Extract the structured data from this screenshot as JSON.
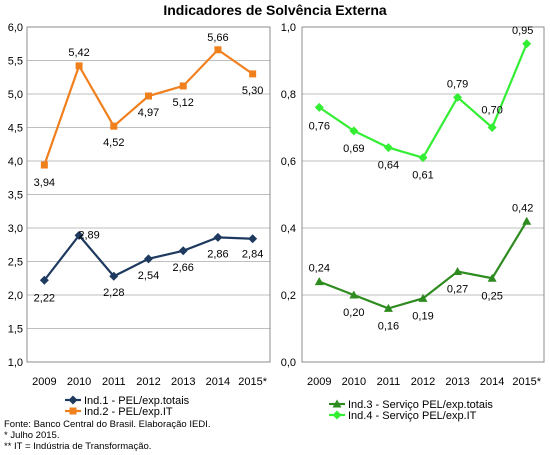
{
  "title": "Indicadores de Solvência Externa",
  "chart_data": [
    {
      "type": "line",
      "categories": [
        "2009",
        "2010",
        "2011",
        "2012",
        "2013",
        "2014",
        "2015*"
      ],
      "ylim": [
        1.0,
        6.0
      ],
      "yticks": [
        "1,0",
        "1,5",
        "2,0",
        "2,5",
        "3,0",
        "3,5",
        "4,0",
        "4,5",
        "5,0",
        "5,5",
        "6,0"
      ],
      "grid": true,
      "legend": "bottom",
      "series": [
        {
          "name": "Ind.1 - PEL/exp.totais",
          "marker": "diamond",
          "color": "#1f3a5f",
          "values": [
            2.22,
            2.89,
            2.28,
            2.54,
            2.66,
            2.86,
            2.84
          ],
          "labels": [
            "2,22",
            "2,89",
            "2,28",
            "2,54",
            "2,66",
            "2,86",
            "2,84"
          ]
        },
        {
          "name": "Ind.2 - PEL/exp.IT",
          "marker": "square",
          "color": "#f07f1e",
          "values": [
            3.94,
            5.42,
            4.52,
            4.97,
            5.12,
            5.66,
            5.3
          ],
          "labels": [
            "3,94",
            "5,42",
            "4,52",
            "4,97",
            "5,12",
            "5,66",
            "5,30"
          ]
        }
      ]
    },
    {
      "type": "line",
      "categories": [
        "2009",
        "2010",
        "2011",
        "2012",
        "2013",
        "2014",
        "2015*"
      ],
      "ylim": [
        0.0,
        1.0
      ],
      "yticks": [
        "0,0",
        "0,2",
        "0,4",
        "0,6",
        "0,8",
        "1,0"
      ],
      "grid": true,
      "legend": "bottom",
      "series": [
        {
          "name": "Ind.3 - Serviço PEL/exp.totais",
          "marker": "triangle",
          "color": "#2e8b1f",
          "values": [
            0.24,
            0.2,
            0.16,
            0.19,
            0.27,
            0.25,
            0.42
          ],
          "labels": [
            "0,24",
            "0,20",
            "0,16",
            "0,19",
            "0,27",
            "0,25",
            "0,42"
          ]
        },
        {
          "name": "Ind.4 - Serviço PEL/exp.IT",
          "marker": "diamond",
          "color": "#33ee33",
          "values": [
            0.76,
            0.69,
            0.64,
            0.61,
            0.79,
            0.7,
            0.95
          ],
          "labels": [
            "0,76",
            "0,69",
            "0,64",
            "0,61",
            "0,79",
            "0,70",
            "0,95"
          ]
        }
      ]
    }
  ],
  "notes": [
    "Fonte: Banco Central do Brasil. Elaboração IEDI.",
    "* Julho 2015.",
    "** IT = Indústria de Transformação."
  ]
}
